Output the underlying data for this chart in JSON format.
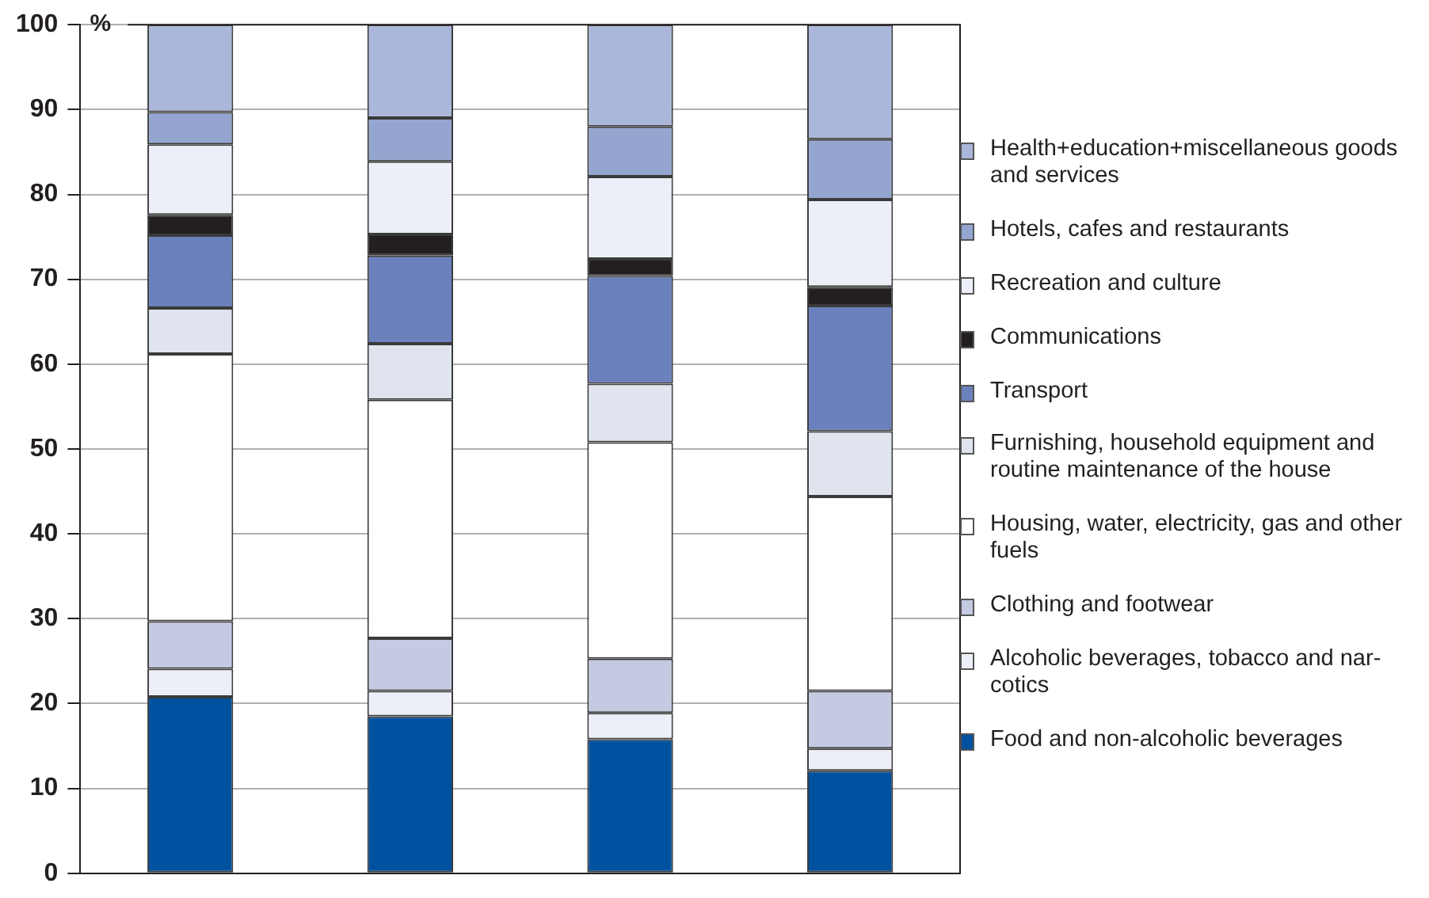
{
  "chart_data": {
    "type": "bar",
    "stacked": true,
    "ylabel": "%",
    "categories": [
      null,
      null,
      null,
      null
    ],
    "ylim": [
      0,
      100
    ],
    "yticks": [
      0,
      10,
      20,
      30,
      40,
      50,
      60,
      70,
      80,
      90,
      100
    ],
    "grid": "y",
    "legend": "right",
    "series": [
      {
        "name": "Food and non-alcoholic beverages",
        "color": "#0051a0",
        "values": [
          20.8,
          18.5,
          15.8,
          12.1
        ]
      },
      {
        "name": "Alcoholic beverages, tobacco and nar-cotics",
        "color": "#eceff7",
        "values": [
          3.3,
          3.0,
          3.1,
          2.6
        ]
      },
      {
        "name": "Clothing and footwear",
        "color": "#c5cae3",
        "values": [
          5.6,
          6.2,
          6.4,
          6.8
        ]
      },
      {
        "name": "Housing, water, electricity, gas and other fuels",
        "color": "#ffffff",
        "values": [
          31.5,
          28.1,
          25.5,
          22.9
        ]
      },
      {
        "name": "Furnishing, household equipment and routine maintenance of the house",
        "color": "#dfe4ef",
        "values": [
          5.4,
          6.6,
          6.9,
          7.7
        ]
      },
      {
        "name": "Transport",
        "color": "#6a81bd",
        "values": [
          8.6,
          10.4,
          12.7,
          14.8
        ]
      },
      {
        "name": "Communications",
        "color": "#231f20",
        "values": [
          2.4,
          2.5,
          2.0,
          2.2
        ]
      },
      {
        "name": "Recreation and culture",
        "color": "#eceff7",
        "values": [
          8.3,
          8.6,
          9.7,
          10.3
        ]
      },
      {
        "name": "Hotels, cafes and restaurants",
        "color": "#94a6d0",
        "values": [
          3.8,
          5.1,
          5.9,
          7.1
        ]
      },
      {
        "name": "Health+education+miscellaneous goods and services",
        "color": "#abb7da",
        "values": [
          10.3,
          11.0,
          12.0,
          13.5
        ]
      }
    ]
  }
}
